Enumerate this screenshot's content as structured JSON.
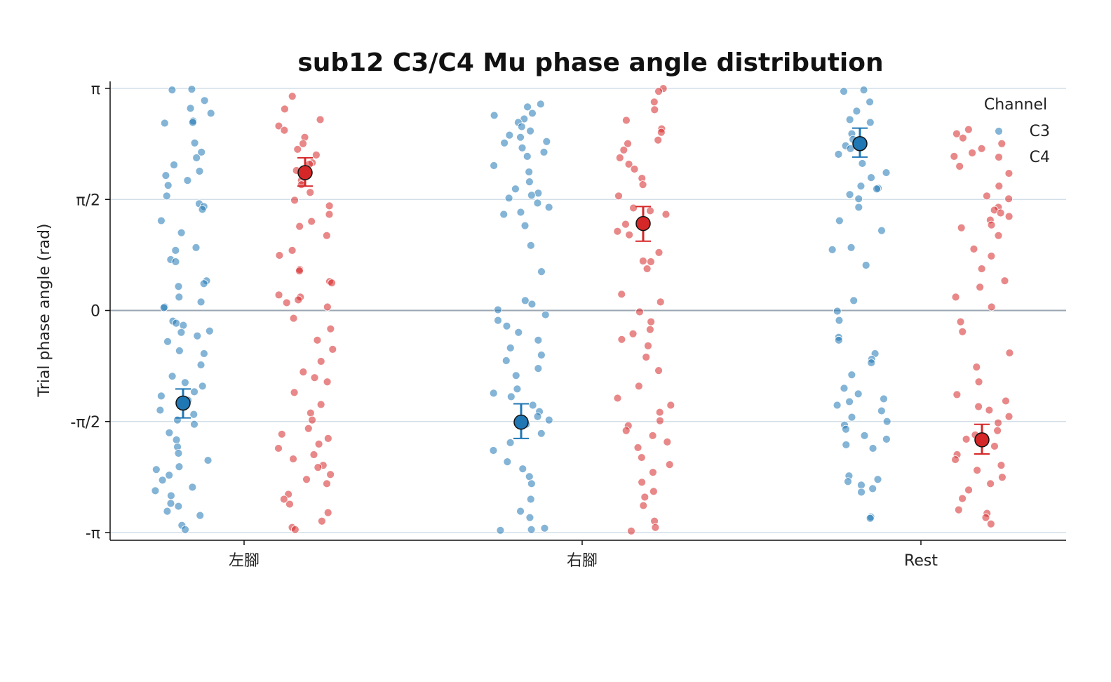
{
  "chart_data": {
    "type": "scatter",
    "title": "sub12 C3/C4 Mu phase angle distribution",
    "xlabel": "",
    "ylabel": "Trial phase angle (rad)",
    "categories": [
      "左腳",
      "右腳",
      "Rest"
    ],
    "ylim": [
      -3.1416,
      3.1416
    ],
    "y_ticks": [
      {
        "value": 3.1416,
        "label": "π"
      },
      {
        "value": 1.5708,
        "label": "π/2"
      },
      {
        "value": 0,
        "label": "0"
      },
      {
        "value": -1.5708,
        "label": "-π/2"
      },
      {
        "value": -3.1416,
        "label": "-π"
      }
    ],
    "grid": "horizontal",
    "legend": {
      "title": "Channel",
      "position": "top-right"
    },
    "series": [
      {
        "name": "C3",
        "color": "#1f77b4",
        "means": [
          {
            "category": "左腳",
            "mean": -1.31,
            "err_low": -1.52,
            "err_high": -1.11
          },
          {
            "category": "右腳",
            "mean": -1.58,
            "err_low": -1.81,
            "err_high": -1.32
          },
          {
            "category": "Rest",
            "mean": 2.36,
            "err_low": 2.17,
            "err_high": 2.58
          }
        ],
        "points": [
          {
            "category": "左腳",
            "values": [
              3.13,
              3.12,
              2.86,
              2.79,
              2.68,
              2.66,
              2.65,
              2.97,
              2.37,
              2.24,
              2.16,
              2.06,
              1.97,
              1.91,
              1.84,
              1.77,
              1.62,
              1.51,
              1.47,
              1.43,
              1.27,
              1.1,
              0.89,
              0.85,
              0.72,
              0.69,
              0.42,
              0.38,
              0.34,
              0.19,
              0.12,
              0.05,
              0.04,
              -0.15,
              -0.18,
              -0.21,
              -0.29,
              -0.31,
              -0.36,
              -0.44,
              -0.57,
              -0.61,
              -0.77,
              -0.93,
              -1.02,
              -1.07,
              -1.15,
              -1.21,
              -1.27,
              -1.41,
              -1.47,
              -1.55,
              -1.61,
              -1.73,
              -1.83,
              -1.93,
              -2.02,
              -2.12,
              -2.21,
              -2.25,
              -2.33,
              -2.4,
              -2.5,
              -2.55,
              -2.62,
              -2.73,
              -2.77,
              -2.84,
              -2.9,
              -3.04,
              -3.1
            ]
          },
          {
            "category": "右腳",
            "values": [
              2.92,
              2.88,
              2.79,
              2.76,
              2.71,
              2.66,
              2.6,
              2.54,
              2.48,
              2.45,
              2.39,
              2.37,
              2.3,
              2.24,
              2.18,
              2.05,
              1.96,
              1.82,
              1.72,
              1.66,
              1.63,
              1.59,
              1.52,
              1.46,
              1.39,
              1.36,
              1.2,
              0.92,
              0.55,
              0.14,
              0.09,
              0.01,
              -0.06,
              -0.14,
              -0.22,
              -0.31,
              -0.42,
              -0.53,
              -0.63,
              -0.71,
              -0.82,
              -0.92,
              -1.11,
              -1.17,
              -1.22,
              -1.34,
              -1.43,
              -1.5,
              -1.55,
              -1.61,
              -1.74,
              -1.87,
              -1.98,
              -2.14,
              -2.24,
              -2.35,
              -2.45,
              -2.67,
              -2.84,
              -2.93,
              -3.08,
              -3.1,
              -3.11
            ]
          },
          {
            "category": "Rest",
            "values": [
              3.12,
              3.1,
              2.95,
              2.82,
              2.7,
              2.66,
              2.5,
              2.42,
              2.33,
              2.29,
              2.21,
              2.08,
              1.95,
              1.88,
              1.76,
              1.73,
              1.72,
              1.64,
              1.58,
              1.46,
              1.27,
              1.13,
              0.89,
              0.86,
              0.64,
              0.14,
              -0.01,
              -0.14,
              -0.38,
              -0.42,
              -0.61,
              -0.69,
              -0.74,
              -0.91,
              -1.1,
              -1.18,
              -1.25,
              -1.29,
              -1.34,
              -1.42,
              -1.51,
              -1.57,
              -1.62,
              -1.68,
              -1.77,
              -1.82,
              -1.9,
              -1.95,
              -2.34,
              -2.39,
              -2.42,
              -2.47,
              -2.52,
              -2.57,
              -2.92,
              -2.94
            ]
          }
        ]
      },
      {
        "name": "C4",
        "color": "#d62728",
        "means": [
          {
            "category": "左腳",
            "mean": 1.95,
            "err_low": 1.76,
            "err_high": 2.16
          },
          {
            "category": "右腳",
            "mean": 1.23,
            "err_low": 0.98,
            "err_high": 1.47
          },
          {
            "category": "Rest",
            "mean": -1.83,
            "err_low": -2.03,
            "err_high": -1.61
          }
        ],
        "points": [
          {
            "category": "左腳",
            "values": [
              3.03,
              2.85,
              2.7,
              2.61,
              2.55,
              2.45,
              2.36,
              2.28,
              2.2,
              2.09,
              2.07,
              1.98,
              1.84,
              1.78,
              1.67,
              1.56,
              1.48,
              1.36,
              1.26,
              1.19,
              1.06,
              0.85,
              0.78,
              0.58,
              0.56,
              0.41,
              0.39,
              0.22,
              0.19,
              0.15,
              0.11,
              0.05,
              -0.11,
              -0.26,
              -0.42,
              -0.55,
              -0.72,
              -0.87,
              -0.95,
              -1.01,
              -1.16,
              -1.33,
              -1.45,
              -1.55,
              -1.67,
              -1.75,
              -1.81,
              -1.89,
              -1.95,
              -2.04,
              -2.1,
              -2.19,
              -2.22,
              -2.32,
              -2.39,
              -2.45,
              -2.6,
              -2.67,
              -2.74,
              -2.86,
              -2.98,
              -3.07,
              -3.1
            ]
          },
          {
            "category": "右腳",
            "values": [
              3.14,
              3.1,
              2.95,
              2.84,
              2.69,
              2.57,
              2.52,
              2.41,
              2.36,
              2.27,
              2.16,
              2.07,
              2.0,
              1.87,
              1.78,
              1.62,
              1.45,
              1.41,
              1.36,
              1.22,
              1.12,
              1.07,
              0.82,
              0.7,
              0.69,
              0.59,
              0.23,
              0.12,
              -0.02,
              -0.16,
              -0.27,
              -0.33,
              -0.41,
              -0.5,
              -0.66,
              -0.85,
              -1.07,
              -1.24,
              -1.34,
              -1.44,
              -1.56,
              -1.63,
              -1.7,
              -1.77,
              -1.86,
              -1.94,
              -2.08,
              -2.18,
              -2.29,
              -2.43,
              -2.56,
              -2.64,
              -2.76,
              -2.98,
              -3.07,
              -3.12
            ]
          },
          {
            "category": "Rest",
            "values": [
              2.56,
              2.5,
              2.44,
              2.36,
              2.29,
              2.23,
              2.18,
              2.04,
              1.94,
              1.76,
              1.62,
              1.58,
              1.46,
              1.42,
              1.38,
              1.33,
              1.28,
              1.21,
              1.17,
              1.06,
              0.87,
              0.77,
              0.59,
              0.42,
              0.33,
              0.19,
              0.05,
              -0.16,
              -0.3,
              -0.6,
              -0.8,
              -1.01,
              -1.19,
              -1.28,
              -1.36,
              -1.41,
              -1.5,
              -1.59,
              -1.7,
              -1.76,
              -1.82,
              -1.92,
              -2.04,
              -2.11,
              -2.19,
              -2.26,
              -2.36,
              -2.45,
              -2.54,
              -2.66,
              -2.82,
              -2.87,
              -2.93,
              -3.02
            ]
          }
        ]
      }
    ]
  }
}
